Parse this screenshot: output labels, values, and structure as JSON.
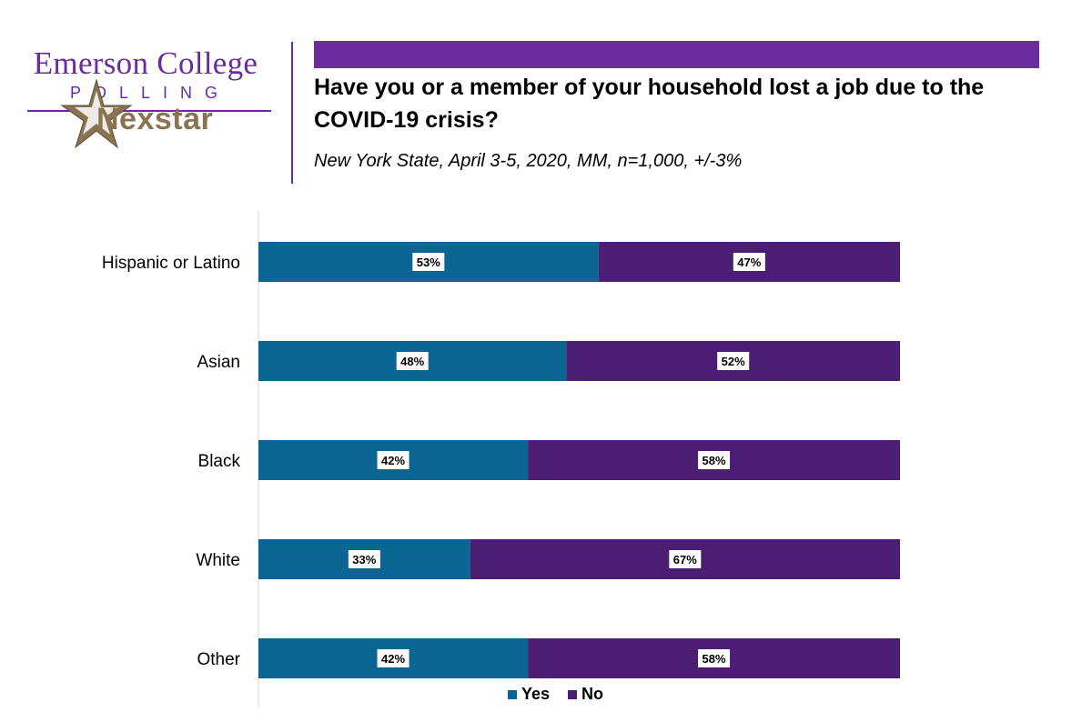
{
  "branding": {
    "name": "Emerson College",
    "subname": "POLLING",
    "partner": "Nexstar"
  },
  "header": {
    "title": "Have you or a member of your household lost a job due to the COVID-19 crisis?",
    "subtitle": "New York State, April 3-5, 2020, MM, n=1,000, +/-3%"
  },
  "chart_data": {
    "type": "bar",
    "orientation": "horizontal",
    "stacked": true,
    "categories": [
      "Hispanic or Latino",
      "Asian",
      "Black",
      "White",
      "Other"
    ],
    "series": [
      {
        "name": "Yes",
        "values": [
          53,
          48,
          42,
          33,
          42
        ],
        "labels": [
          "53%",
          "48%",
          "42%",
          "33%",
          "42%"
        ],
        "color": "#0a6592"
      },
      {
        "name": "No",
        "values": [
          47,
          52,
          58,
          67,
          58
        ],
        "labels": [
          "47%",
          "52%",
          "58%",
          "67%",
          "58%"
        ],
        "color": "#4b1e74"
      }
    ],
    "xlim": [
      0,
      100
    ],
    "legend": "bottom",
    "grid": false
  }
}
